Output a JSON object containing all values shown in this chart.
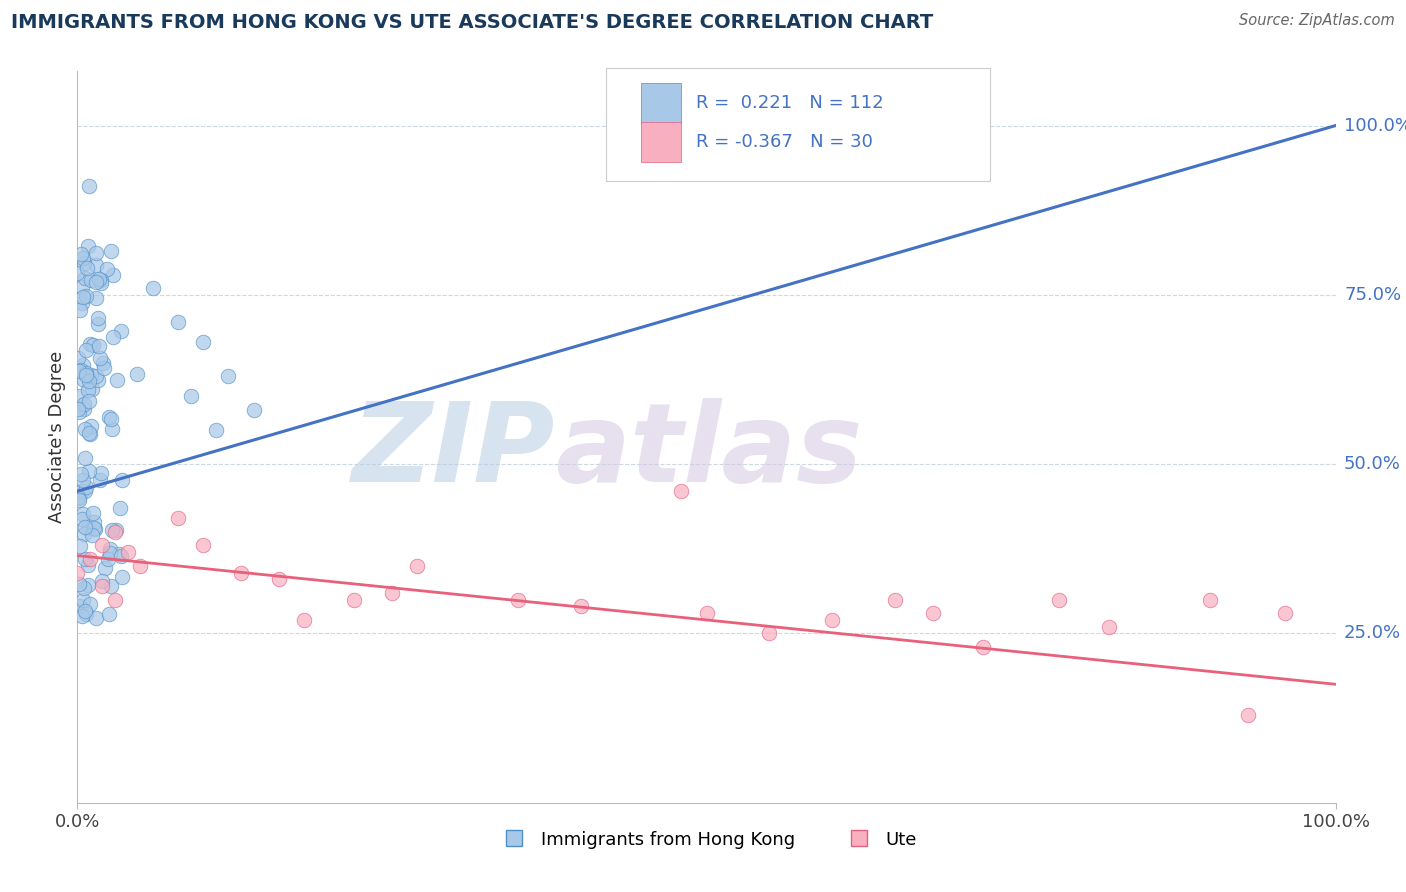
{
  "title": "IMMIGRANTS FROM HONG KONG VS UTE ASSOCIATE'S DEGREE CORRELATION CHART",
  "source_text": "Source: ZipAtlas.com",
  "ylabel": "Associate's Degree",
  "xlim": [
    0.0,
    1.0
  ],
  "ylim": [
    0.0,
    1.08
  ],
  "blue_scatter_color": "#a8c8e8",
  "blue_edge_color": "#5090c8",
  "blue_line_color": "#4472c4",
  "pink_scatter_color": "#f8b0c0",
  "pink_edge_color": "#e06080",
  "pink_line_color": "#e8607a",
  "blue_R": 0.221,
  "blue_N": 112,
  "pink_R": -0.367,
  "pink_N": 30,
  "grid_color": "#c8d4e0",
  "title_color": "#1a3a5c",
  "right_tick_color": "#4472c4",
  "watermark_color": "#d0dcea",
  "background_color": "#ffffff",
  "legend_label_blue": "Immigrants from Hong Kong",
  "legend_label_pink": "Ute",
  "watermark_zip_color": "#c8d8ec",
  "watermark_atlas_color": "#d0c8e0",
  "blue_line_start_y": 0.46,
  "blue_line_end_y": 1.0,
  "pink_line_start_y": 0.365,
  "pink_line_end_y": 0.175
}
